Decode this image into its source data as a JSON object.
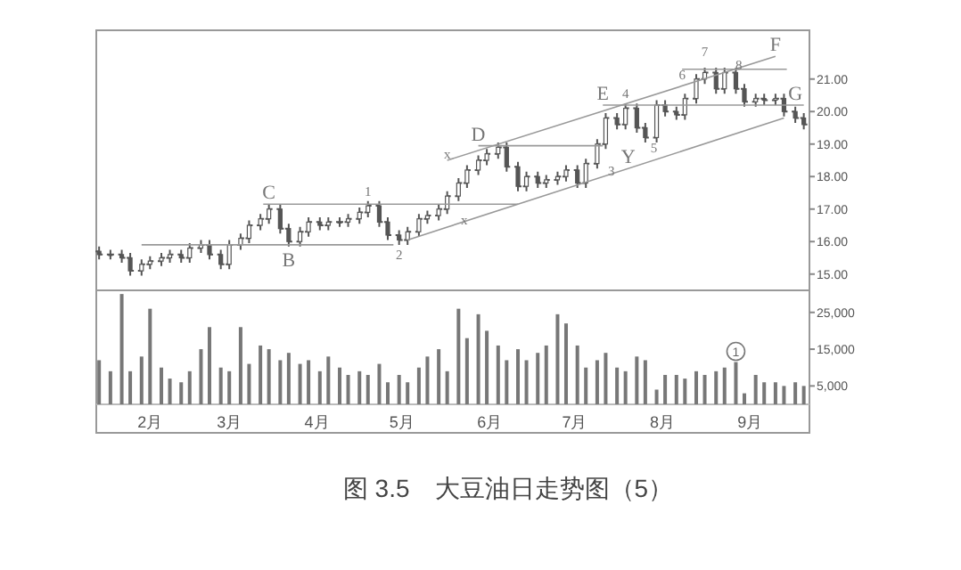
{
  "chart_data": [
    {
      "type": "candlestick",
      "color": "#555555",
      "tick_labels": "y",
      "title": "图 3.5　大豆油日走势图（5）",
      "xlim": [
        "--01-13",
        "--09-22"
      ],
      "ylim": [
        14.5,
        22.5
      ],
      "yticks": [
        {
          "value": 15,
          "label": "15.00"
        },
        {
          "value": 16,
          "label": "16.00"
        },
        {
          "value": 17,
          "label": "17.00"
        },
        {
          "value": 18,
          "label": "18.00"
        },
        {
          "value": 19,
          "label": "19.00"
        },
        {
          "value": 20,
          "label": "20.00"
        },
        {
          "value": 21,
          "label": "21.00"
        }
      ],
      "x": [
        "--01-14",
        "--01-18",
        "--01-22",
        "--01-25",
        "--01-29",
        "--02-01",
        "--02-05",
        "--02-08",
        "--02-12",
        "--02-15",
        "--02-19",
        "--02-22",
        "--02-26",
        "--03-01",
        "--03-05",
        "--03-08",
        "--03-12",
        "--03-15",
        "--03-19",
        "--03-22",
        "--03-26",
        "--03-29",
        "--04-02",
        "--04-05",
        "--04-09",
        "--04-12",
        "--04-16",
        "--04-19",
        "--04-23",
        "--04-26",
        "--04-30",
        "--05-03",
        "--05-07",
        "--05-10",
        "--05-14",
        "--05-17",
        "--05-21",
        "--05-24",
        "--05-28",
        "--05-31",
        "--06-04",
        "--06-07",
        "--06-11",
        "--06-14",
        "--06-18",
        "--06-21",
        "--06-25",
        "--06-28",
        "--07-02",
        "--07-05",
        "--07-09",
        "--07-12",
        "--07-16",
        "--07-19",
        "--07-23",
        "--07-26",
        "--07-30",
        "--08-02",
        "--08-06",
        "--08-09",
        "--08-13",
        "--08-16",
        "--08-20",
        "--08-23",
        "--08-27",
        "--08-30",
        "--09-03",
        "--09-06",
        "--09-10",
        "--09-13",
        "--09-17",
        "--09-20"
      ],
      "ohlc": [
        [
          15.7,
          15.85,
          15.45,
          15.6
        ],
        [
          15.6,
          15.75,
          15.45,
          15.6
        ],
        [
          15.6,
          15.75,
          15.35,
          15.5
        ],
        [
          15.5,
          15.65,
          14.95,
          15.1
        ],
        [
          15.1,
          15.45,
          14.95,
          15.3
        ],
        [
          15.3,
          15.55,
          15.15,
          15.4
        ],
        [
          15.4,
          15.65,
          15.25,
          15.5
        ],
        [
          15.5,
          15.75,
          15.35,
          15.6
        ],
        [
          15.6,
          15.75,
          15.35,
          15.5
        ],
        [
          15.5,
          15.95,
          15.35,
          15.8
        ],
        [
          15.8,
          16.05,
          15.65,
          15.9
        ],
        [
          15.9,
          16.05,
          15.45,
          15.6
        ],
        [
          15.6,
          15.75,
          15.15,
          15.3
        ],
        [
          15.3,
          16.05,
          15.15,
          15.9
        ],
        [
          15.9,
          16.25,
          15.75,
          16.1
        ],
        [
          16.1,
          16.65,
          15.95,
          16.5
        ],
        [
          16.5,
          16.85,
          16.35,
          16.7
        ],
        [
          16.7,
          17.15,
          16.55,
          17.0
        ],
        [
          17.0,
          17.15,
          16.25,
          16.4
        ],
        [
          16.4,
          16.55,
          15.85,
          16.0
        ],
        [
          16.0,
          16.45,
          15.85,
          16.3
        ],
        [
          16.3,
          16.75,
          16.15,
          16.6
        ],
        [
          16.6,
          16.75,
          16.35,
          16.5
        ],
        [
          16.5,
          16.75,
          16.35,
          16.6
        ],
        [
          16.6,
          16.75,
          16.45,
          16.6
        ],
        [
          16.6,
          16.85,
          16.45,
          16.7
        ],
        [
          16.7,
          17.05,
          16.55,
          16.9
        ],
        [
          16.9,
          17.25,
          16.75,
          17.1
        ],
        [
          17.1,
          17.25,
          16.45,
          16.6
        ],
        [
          16.6,
          16.75,
          16.05,
          16.2
        ],
        [
          16.2,
          16.35,
          15.9,
          16.05
        ],
        [
          16.05,
          16.45,
          15.9,
          16.3
        ],
        [
          16.3,
          16.85,
          16.15,
          16.7
        ],
        [
          16.7,
          16.95,
          16.55,
          16.8
        ],
        [
          16.8,
          17.15,
          16.65,
          17.0
        ],
        [
          17.0,
          17.55,
          16.85,
          17.4
        ],
        [
          17.4,
          17.95,
          17.25,
          17.8
        ],
        [
          17.8,
          18.35,
          17.65,
          18.2
        ],
        [
          18.2,
          18.65,
          18.05,
          18.5
        ],
        [
          18.5,
          18.85,
          18.35,
          18.7
        ],
        [
          18.7,
          19.05,
          18.55,
          18.9
        ],
        [
          18.9,
          19.05,
          18.15,
          18.3
        ],
        [
          18.3,
          18.45,
          17.55,
          17.7
        ],
        [
          17.7,
          18.15,
          17.55,
          18.0
        ],
        [
          18.0,
          18.15,
          17.65,
          17.8
        ],
        [
          17.8,
          18.05,
          17.65,
          17.9
        ],
        [
          17.9,
          18.15,
          17.75,
          18.0
        ],
        [
          18.0,
          18.35,
          17.85,
          18.2
        ],
        [
          18.2,
          18.35,
          17.65,
          17.8
        ],
        [
          17.8,
          18.55,
          17.65,
          18.4
        ],
        [
          18.4,
          19.15,
          18.25,
          19.0
        ],
        [
          19.0,
          19.95,
          18.85,
          19.8
        ],
        [
          19.8,
          19.95,
          19.45,
          19.6
        ],
        [
          19.6,
          20.25,
          19.45,
          20.1
        ],
        [
          20.1,
          20.25,
          19.35,
          19.5
        ],
        [
          19.5,
          19.65,
          19.05,
          19.2
        ],
        [
          19.2,
          20.35,
          19.05,
          20.2
        ],
        [
          20.2,
          20.35,
          19.85,
          20.0
        ],
        [
          20.0,
          20.15,
          19.75,
          19.9
        ],
        [
          19.9,
          20.55,
          19.75,
          20.4
        ],
        [
          20.4,
          21.15,
          20.25,
          21.0
        ],
        [
          21.0,
          21.35,
          20.85,
          21.2
        ],
        [
          21.2,
          21.35,
          20.55,
          20.7
        ],
        [
          20.7,
          21.35,
          20.55,
          21.2
        ],
        [
          21.2,
          21.35,
          20.55,
          20.7
        ],
        [
          20.7,
          20.85,
          20.15,
          20.3
        ],
        [
          20.3,
          20.55,
          20.15,
          20.4
        ],
        [
          20.4,
          20.55,
          20.2,
          20.35
        ],
        [
          20.35,
          20.55,
          20.2,
          20.4
        ],
        [
          20.4,
          20.55,
          19.85,
          20.0
        ],
        [
          20.0,
          20.15,
          19.65,
          19.8
        ],
        [
          19.8,
          19.95,
          19.45,
          19.6
        ]
      ],
      "series": [
        {
          "type": "line",
          "color": "#999999",
          "x": [
            "--01-29",
            "--04-28"
          ],
          "values": [
            15.9,
            15.9
          ]
        },
        {
          "type": "line",
          "color": "#999999",
          "x": [
            "--03-13",
            "--06-11"
          ],
          "values": [
            17.15,
            17.15
          ]
        },
        {
          "type": "line",
          "color": "#999999",
          "x": [
            "--05-28",
            "--07-11"
          ],
          "values": [
            18.95,
            18.95
          ]
        },
        {
          "type": "line",
          "color": "#999999",
          "x": [
            "--07-11",
            "--09-20"
          ],
          "values": [
            20.2,
            20.2
          ]
        },
        {
          "type": "line",
          "color": "#999999",
          "x": [
            "--08-08",
            "--09-14"
          ],
          "values": [
            21.3,
            21.3
          ]
        },
        {
          "type": "line",
          "color": "#999999",
          "x": [
            "--05-03",
            "--09-13"
          ],
          "values": [
            16.05,
            19.8
          ]
        },
        {
          "type": "line",
          "color": "#999999",
          "x": [
            "--05-17",
            "--09-10"
          ],
          "values": [
            18.5,
            21.7
          ]
        }
      ],
      "annotations": [
        {
          "text": "C",
          "x": "--03-15",
          "y": 17.15
        },
        {
          "text": "B",
          "x": "--03-22",
          "y": 15.85
        },
        {
          "text": "1",
          "x": "--04-19",
          "y": 17.25
        },
        {
          "text": "2",
          "x": "--04-30",
          "y": 15.9
        },
        {
          "text": "D",
          "x": "--05-28",
          "y": 18.95
        },
        {
          "text": "x",
          "x": "--05-17",
          "y": 18.4
        },
        {
          "text": "x",
          "x": "--05-23",
          "y": 16.7
        },
        {
          "text": "E",
          "x": "--07-11",
          "y": 20.2
        },
        {
          "text": "4",
          "x": "--07-19",
          "y": 20.25
        },
        {
          "text": "3",
          "x": "--07-14",
          "y": 18.2
        },
        {
          "text": "Y",
          "x": "--07-20",
          "y": 18.25
        },
        {
          "text": "5",
          "x": "--07-29",
          "y": 18.9
        },
        {
          "text": "6",
          "x": "--08-08",
          "y": 21.15
        },
        {
          "text": "7",
          "x": "--08-16",
          "y": 21.55
        },
        {
          "text": "8",
          "x": "--08-28",
          "y": 21.45
        },
        {
          "text": "F",
          "x": "--09-10",
          "y": 21.7
        },
        {
          "text": "G",
          "x": "--09-17",
          "y": 20.2
        }
      ]
    },
    {
      "type": "bar",
      "color": "#777777",
      "xlim": [
        "--01-13",
        "--09-22"
      ],
      "ylim": [
        0,
        31000
      ],
      "yticks": [
        {
          "value": 5000,
          "label": "5,000"
        },
        {
          "value": 15000,
          "label": "15,000"
        },
        {
          "value": 25000,
          "label": "25,000"
        }
      ],
      "xticks": [
        {
          "value": "--02-01",
          "label": "2月"
        },
        {
          "value": "--03-01",
          "label": "3月"
        },
        {
          "value": "--04-01",
          "label": "4月"
        },
        {
          "value": "--05-01",
          "label": "5月"
        },
        {
          "value": "--06-01",
          "label": "6月"
        },
        {
          "value": "--07-01",
          "label": "7月"
        },
        {
          "value": "--08-01",
          "label": "8月"
        },
        {
          "value": "--09-01",
          "label": "9月"
        }
      ],
      "x": [
        "--01-14",
        "--01-18",
        "--01-22",
        "--01-25",
        "--01-29",
        "--02-01",
        "--02-05",
        "--02-08",
        "--02-12",
        "--02-15",
        "--02-19",
        "--02-22",
        "--02-26",
        "--03-01",
        "--03-05",
        "--03-08",
        "--03-12",
        "--03-15",
        "--03-19",
        "--03-22",
        "--03-26",
        "--03-29",
        "--04-02",
        "--04-05",
        "--04-09",
        "--04-12",
        "--04-16",
        "--04-19",
        "--04-23",
        "--04-26",
        "--04-30",
        "--05-03",
        "--05-07",
        "--05-10",
        "--05-14",
        "--05-17",
        "--05-21",
        "--05-24",
        "--05-28",
        "--05-31",
        "--06-04",
        "--06-07",
        "--06-11",
        "--06-14",
        "--06-18",
        "--06-21",
        "--06-25",
        "--06-28",
        "--07-02",
        "--07-05",
        "--07-09",
        "--07-12",
        "--07-16",
        "--07-19",
        "--07-23",
        "--07-26",
        "--07-30",
        "--08-02",
        "--08-06",
        "--08-09",
        "--08-13",
        "--08-16",
        "--08-20",
        "--08-23",
        "--08-27",
        "--08-30",
        "--09-03",
        "--09-06",
        "--09-10",
        "--09-13",
        "--09-17",
        "--09-20"
      ],
      "values": [
        12000,
        9000,
        30000,
        9000,
        13000,
        26000,
        10000,
        7000,
        6000,
        9000,
        15000,
        21000,
        10000,
        9000,
        21000,
        11000,
        16000,
        15000,
        12000,
        14000,
        11000,
        12000,
        9000,
        13000,
        10000,
        8000,
        9000,
        8000,
        11000,
        6000,
        8000,
        6000,
        10000,
        13000,
        15000,
        9000,
        26000,
        18000,
        24500,
        20000,
        16000,
        12000,
        15000,
        12000,
        14000,
        16000,
        24500,
        22000,
        16000,
        10000,
        12000,
        14000,
        10000,
        9000,
        13000,
        12000,
        4000,
        8000,
        8000,
        7000,
        9000,
        8000,
        9000,
        10000,
        11500,
        3000,
        8000,
        6000,
        6000,
        5000,
        6000,
        5000
      ],
      "annotations": [
        {
          "text": "1",
          "x": "--08-27",
          "y": 11500
        }
      ]
    }
  ]
}
